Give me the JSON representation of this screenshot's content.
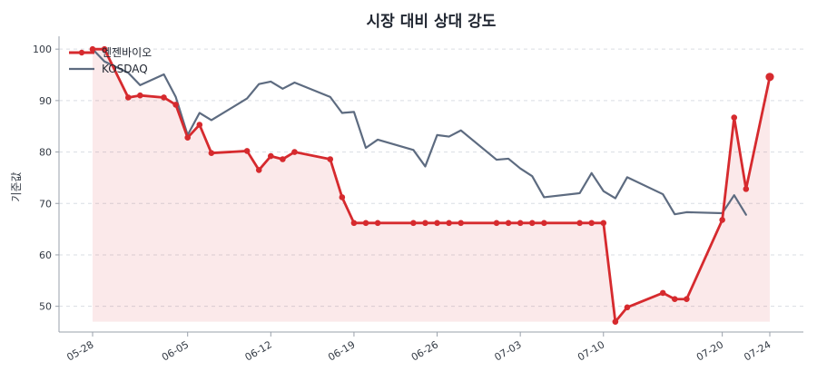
{
  "chart_data": {
    "type": "line",
    "title": "시장 대비 상대 강도",
    "xlabel": "",
    "ylabel": "기준값",
    "ylim": [
      45,
      102.5
    ],
    "yticks": [
      50,
      60,
      70,
      80,
      90,
      100
    ],
    "grid": true,
    "legend_position": "top-left",
    "x": [
      "05-28",
      "05-29",
      "05-30",
      "05-31",
      "06-01",
      "06-02",
      "06-03",
      "06-04",
      "06-05",
      "06-06",
      "06-07",
      "06-08",
      "06-09",
      "06-10",
      "06-11",
      "06-12",
      "06-13",
      "06-14",
      "06-15",
      "06-16",
      "06-17",
      "06-18",
      "06-19",
      "06-20",
      "06-21",
      "06-22",
      "06-23",
      "06-24",
      "06-25",
      "06-26",
      "06-27",
      "06-28",
      "06-29",
      "06-30",
      "07-01",
      "07-02",
      "07-03",
      "07-04",
      "07-05",
      "07-06",
      "07-07",
      "07-08",
      "07-09",
      "07-10",
      "07-11",
      "07-12",
      "07-13",
      "07-14",
      "07-15",
      "07-16",
      "07-17",
      "07-18",
      "07-19",
      "07-20",
      "07-21",
      "07-22",
      "07-23",
      "07-24"
    ],
    "xticks": [
      "05-28",
      "06-05",
      "06-12",
      "06-19",
      "06-26",
      "07-03",
      "07-10",
      "07-20",
      "07-24"
    ],
    "series": [
      {
        "name": "엔젠바이오",
        "color": "#d62a2e",
        "markers": true,
        "area_fill": true,
        "points": [
          [
            "05-28",
            100.0
          ],
          [
            "05-29",
            100.0
          ],
          [
            "05-31",
            90.6
          ],
          [
            "06-01",
            91.0
          ],
          [
            "06-03",
            90.6
          ],
          [
            "06-04",
            89.2
          ],
          [
            "06-05",
            82.8
          ],
          [
            "06-06",
            85.3
          ],
          [
            "06-07",
            79.8
          ],
          [
            "06-10",
            80.2
          ],
          [
            "06-11",
            76.5
          ],
          [
            "06-12",
            79.2
          ],
          [
            "06-13",
            78.6
          ],
          [
            "06-14",
            80.0
          ],
          [
            "06-17",
            78.6
          ],
          [
            "06-18",
            71.2
          ],
          [
            "06-19",
            66.2
          ],
          [
            "06-20",
            66.2
          ],
          [
            "06-21",
            66.2
          ],
          [
            "06-24",
            66.2
          ],
          [
            "06-25",
            66.2
          ],
          [
            "06-26",
            66.2
          ],
          [
            "06-27",
            66.2
          ],
          [
            "06-28",
            66.2
          ],
          [
            "07-01",
            66.2
          ],
          [
            "07-02",
            66.2
          ],
          [
            "07-03",
            66.2
          ],
          [
            "07-04",
            66.2
          ],
          [
            "07-05",
            66.2
          ],
          [
            "07-08",
            66.2
          ],
          [
            "07-09",
            66.2
          ],
          [
            "07-10",
            66.2
          ],
          [
            "07-11",
            47.0
          ],
          [
            "07-12",
            49.8
          ],
          [
            "07-15",
            52.6
          ],
          [
            "07-16",
            51.4
          ],
          [
            "07-17",
            51.4
          ],
          [
            "07-20",
            66.8
          ],
          [
            "07-21",
            86.7
          ],
          [
            "07-22",
            72.8
          ],
          [
            "07-24",
            94.6
          ]
        ]
      },
      {
        "name": "KOSDAQ",
        "color": "#5d6b80",
        "markers": false,
        "area_fill": false,
        "points": [
          [
            "05-28",
            100.0
          ],
          [
            "05-29",
            97.6
          ],
          [
            "05-31",
            95.4
          ],
          [
            "06-01",
            93.0
          ],
          [
            "06-03",
            95.1
          ],
          [
            "06-04",
            90.7
          ],
          [
            "06-05",
            83.3
          ],
          [
            "06-06",
            87.6
          ],
          [
            "06-07",
            86.2
          ],
          [
            "06-10",
            90.4
          ],
          [
            "06-11",
            93.2
          ],
          [
            "06-12",
            93.7
          ],
          [
            "06-13",
            92.3
          ],
          [
            "06-14",
            93.5
          ],
          [
            "06-17",
            90.7
          ],
          [
            "06-18",
            87.6
          ],
          [
            "06-19",
            87.8
          ],
          [
            "06-20",
            80.8
          ],
          [
            "06-21",
            82.4
          ],
          [
            "06-24",
            80.4
          ],
          [
            "06-25",
            77.2
          ],
          [
            "06-26",
            83.3
          ],
          [
            "06-27",
            83.0
          ],
          [
            "06-28",
            84.2
          ],
          [
            "07-01",
            78.5
          ],
          [
            "07-02",
            78.7
          ],
          [
            "07-03",
            76.8
          ],
          [
            "07-04",
            75.3
          ],
          [
            "07-05",
            71.2
          ],
          [
            "07-08",
            72.0
          ],
          [
            "07-09",
            75.9
          ],
          [
            "07-10",
            72.4
          ],
          [
            "07-11",
            71.0
          ],
          [
            "07-12",
            75.1
          ],
          [
            "07-15",
            71.8
          ],
          [
            "07-16",
            67.9
          ],
          [
            "07-17",
            68.3
          ],
          [
            "07-20",
            68.1
          ],
          [
            "07-21",
            71.6
          ],
          [
            "07-22",
            67.8
          ]
        ]
      }
    ]
  }
}
